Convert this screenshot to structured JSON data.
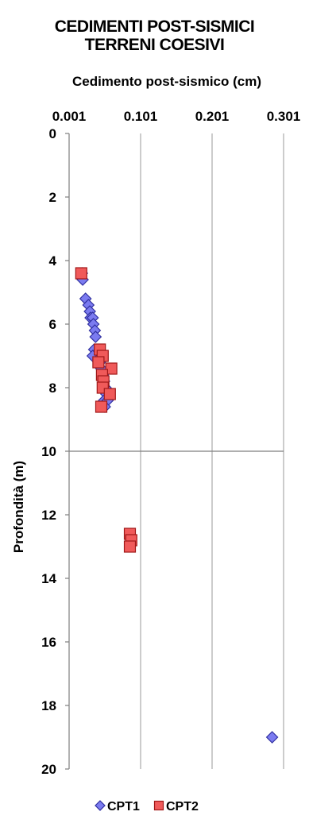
{
  "chart_data": {
    "type": "scatter",
    "title": [
      "CEDIMENTI POST-SISMICI",
      "TERRENI COESIVI"
    ],
    "xlabel": "Cedimento post-sismico (cm)",
    "ylabel": "Profondità (m)",
    "xlim": [
      0.001,
      0.301
    ],
    "ylim": [
      0,
      20
    ],
    "y_inverted": true,
    "x_axis_position": "top",
    "x_ticks": [
      "0.001",
      "0.101",
      "0.201",
      "0.301"
    ],
    "x_tick_values": [
      0.001,
      0.101,
      0.201,
      0.301
    ],
    "y_ticks": [
      "0",
      "2",
      "4",
      "6",
      "8",
      "10",
      "12",
      "14",
      "16",
      "18",
      "20"
    ],
    "y_tick_values": [
      0,
      2,
      4,
      6,
      8,
      10,
      12,
      14,
      16,
      18,
      20
    ],
    "grid": "vertical",
    "legend": "bottom",
    "series": [
      {
        "name": "CPT1",
        "marker": "diamond",
        "color": "#7b7bf0",
        "edge": "#3030a0",
        "points": [
          [
            0.019,
            4.4
          ],
          [
            0.02,
            4.6
          ],
          [
            0.024,
            5.2
          ],
          [
            0.028,
            5.4
          ],
          [
            0.03,
            5.6
          ],
          [
            0.031,
            5.8
          ],
          [
            0.034,
            5.8
          ],
          [
            0.035,
            6.0
          ],
          [
            0.037,
            6.2
          ],
          [
            0.038,
            6.4
          ],
          [
            0.036,
            6.8
          ],
          [
            0.04,
            6.9
          ],
          [
            0.034,
            7.0
          ],
          [
            0.042,
            7.1
          ],
          [
            0.044,
            7.2
          ],
          [
            0.046,
            7.4
          ],
          [
            0.048,
            7.6
          ],
          [
            0.05,
            7.8
          ],
          [
            0.052,
            8.0
          ],
          [
            0.053,
            8.2
          ],
          [
            0.05,
            8.4
          ],
          [
            0.055,
            8.4
          ],
          [
            0.051,
            8.6
          ],
          [
            0.285,
            19.0
          ]
        ]
      },
      {
        "name": "CPT2",
        "marker": "square",
        "color": "#f05a5a",
        "edge": "#a01818",
        "points": [
          [
            0.018,
            4.4
          ],
          [
            0.044,
            6.8
          ],
          [
            0.048,
            7.0
          ],
          [
            0.042,
            7.2
          ],
          [
            0.06,
            7.4
          ],
          [
            0.047,
            7.6
          ],
          [
            0.049,
            7.8
          ],
          [
            0.048,
            8.0
          ],
          [
            0.058,
            8.2
          ],
          [
            0.046,
            8.6
          ],
          [
            0.086,
            12.6
          ],
          [
            0.088,
            12.8
          ],
          [
            0.086,
            13.0
          ]
        ]
      }
    ]
  }
}
